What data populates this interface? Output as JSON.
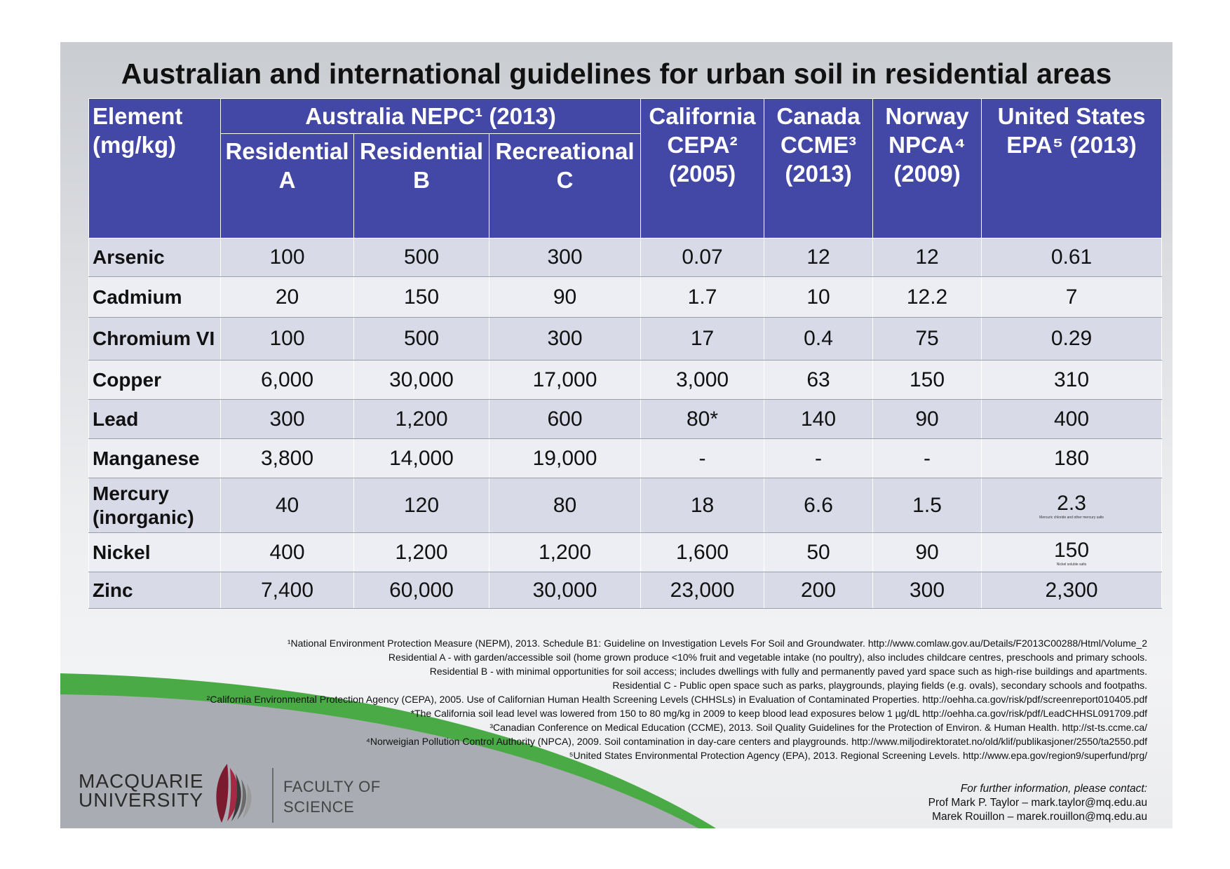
{
  "title": "Australian and international guidelines for urban soil in residential areas",
  "colors": {
    "header_bg": "#4347a5",
    "row_odd": "#d8dae7",
    "row_even": "#eceef3",
    "green_band": "#4aaa46",
    "slide_bottom_gray": "#a9acb2",
    "logo_maroon": "#7a1b2f"
  },
  "table": {
    "element_header": [
      "Element",
      "(mg/kg)"
    ],
    "groups": [
      {
        "lines": [
          "Australia NEPC¹ (2013)"
        ]
      },
      {
        "lines": [
          "California",
          "CEPA²",
          "(2005)"
        ]
      },
      {
        "lines": [
          "Canada",
          "CCME³",
          "(2013)"
        ]
      },
      {
        "lines": [
          "Norway",
          "NPCA⁴",
          "(2009)"
        ]
      },
      {
        "lines": [
          "United States",
          "EPA⁵ (2013)"
        ]
      }
    ],
    "subheaders": [
      [
        "Residential",
        "A"
      ],
      [
        "Residential",
        "B"
      ],
      [
        "Recreational",
        "C"
      ]
    ],
    "rows": [
      {
        "element": [
          "Arsenic"
        ],
        "values": [
          "100",
          "500",
          "300",
          "0.07",
          "12",
          "12",
          "0.61"
        ]
      },
      {
        "element": [
          "Cadmium"
        ],
        "values": [
          "20",
          "150",
          "90",
          "1.7",
          "10",
          "12.2",
          "7"
        ]
      },
      {
        "element": [
          "Chromium VI"
        ],
        "values": [
          "100",
          "500",
          "300",
          "17",
          "0.4",
          "75",
          "0.29"
        ]
      },
      {
        "element": [
          "Copper"
        ],
        "values": [
          "6,000",
          "30,000",
          "17,000",
          "3,000",
          "63",
          "150",
          "310"
        ]
      },
      {
        "element": [
          "Lead"
        ],
        "values": [
          "300",
          "1,200",
          "600",
          "80*",
          "140",
          "90",
          "400"
        ]
      },
      {
        "element": [
          "Manganese"
        ],
        "values": [
          "3,800",
          "14,000",
          "19,000",
          "-",
          "-",
          "-",
          "180"
        ]
      },
      {
        "element": [
          "Mercury",
          "(inorganic)"
        ],
        "values": [
          "40",
          "120",
          "80",
          "18",
          "6.6",
          "1.5",
          "2.3"
        ],
        "fine_print": "Mercuric chloride and other mercury salts"
      },
      {
        "element": [
          "Nickel"
        ],
        "values": [
          "400",
          "1,200",
          "1,200",
          "1,600",
          "50",
          "90",
          "150"
        ],
        "fine_print": "Nickel soluble salts"
      },
      {
        "element": [
          "Zinc"
        ],
        "values": [
          "7,400",
          "60,000",
          "30,000",
          "23,000",
          "200",
          "300",
          "2,300"
        ]
      }
    ]
  },
  "footnotes": [
    "¹National Environment Protection Measure (NEPM), 2013. Schedule B1: Guideline on Investigation Levels For Soil and Groundwater. http://www.comlaw.gov.au/Details/F2013C00288/Html/Volume_2",
    "Residential A - with garden/accessible soil (home grown produce <10% fruit and vegetable intake (no poultry), also includes childcare centres, preschools and primary schools.",
    "Residential B - with minimal opportunities for soil access; includes dwellings with fully and permanently paved yard space such as high-rise buildings and apartments.",
    "Residential C - Public open space such as parks, playgrounds, playing fields (e.g. ovals), secondary schools and footpaths.",
    "²California Environmental Protection Agency (CEPA), 2005. Use of Californian Human Health Screening Levels (CHHSLs) in Evaluation of Contaminated Properties. http://oehha.ca.gov/risk/pdf/screenreport010405.pdf",
    "*The California soil lead level was lowered from 150 to 80 mg/kg in 2009 to keep blood lead exposures below 1 µg/dL http://oehha.ca.gov/risk/pdf/LeadCHHSL091709.pdf",
    "³Canadian Conference on Medical Education (CCME), 2013. Soil Quality Guidelines for the Protection of Environ. & Human Health. http://st-ts.ccme.ca/",
    "⁴Norweigian Pollution Control Authority (NPCA), 2009. Soil contamination in day-care centers and playgrounds. http://www.miljodirektoratet.no/old/klif/publikasjoner/2550/ta2550.pdf",
    "⁵United States Environmental Protection Agency (EPA), 2013. Regional Screening Levels. http://www.epa.gov/region9/superfund/prg/"
  ],
  "contact": {
    "intro": "For further information, please contact:",
    "lines": [
      "Prof Mark P. Taylor – mark.taylor@mq.edu.au",
      "Marek Rouillon – marek.rouillon@mq.edu.au"
    ]
  },
  "university": {
    "line1": "MACQUARIE",
    "line2": "UNIVERSITY"
  },
  "faculty": {
    "line1": "FACULTY OF",
    "line2": "SCIENCE"
  },
  "icons": {
    "logo": "macquarie-lighthouse-logo"
  }
}
